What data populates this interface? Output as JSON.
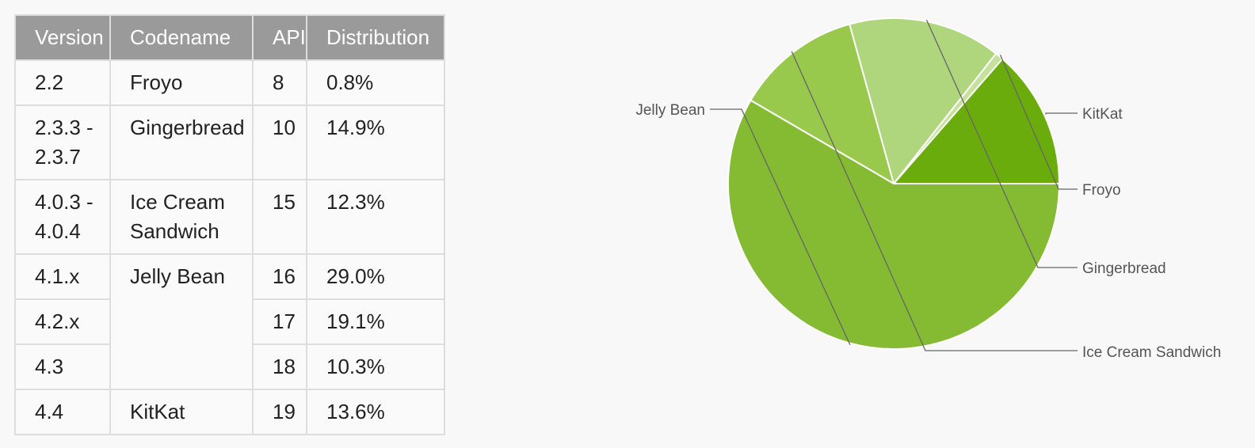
{
  "table": {
    "headers": [
      "Version",
      "Codename",
      "API",
      "Distribution"
    ],
    "rows": [
      {
        "version": "2.2",
        "codename": "Froyo",
        "api": "8",
        "distribution": "0.8%"
      },
      {
        "version": "2.3.3 - 2.3.7",
        "codename": "Gingerbread",
        "api": "10",
        "distribution": "14.9%"
      },
      {
        "version": "4.0.3 - 4.0.4",
        "codename": "Ice Cream Sandwich",
        "api": "15",
        "distribution": "12.3%"
      },
      {
        "version": "4.1.x",
        "codename": "Jelly Bean",
        "api": "16",
        "distribution": "29.0%"
      },
      {
        "version": "4.2.x",
        "codename": "",
        "api": "17",
        "distribution": "19.1%"
      },
      {
        "version": "4.3",
        "codename": "",
        "api": "18",
        "distribution": "10.3%"
      },
      {
        "version": "4.4",
        "codename": "KitKat",
        "api": "19",
        "distribution": "13.6%"
      }
    ]
  },
  "chart_data": {
    "type": "pie",
    "slices": [
      {
        "label": "KitKat",
        "value": 13.6,
        "color": "#6aac0c"
      },
      {
        "label": "Froyo",
        "value": 0.8,
        "color": "#c5e19b"
      },
      {
        "label": "Gingerbread",
        "value": 14.9,
        "color": "#afd57d"
      },
      {
        "label": "Ice Cream Sandwich",
        "value": 12.3,
        "color": "#99c94c"
      },
      {
        "label": "Jelly Bean",
        "value": 58.4,
        "color": "#85bb32"
      }
    ],
    "label_style": "leader-lines",
    "legend": "none"
  }
}
